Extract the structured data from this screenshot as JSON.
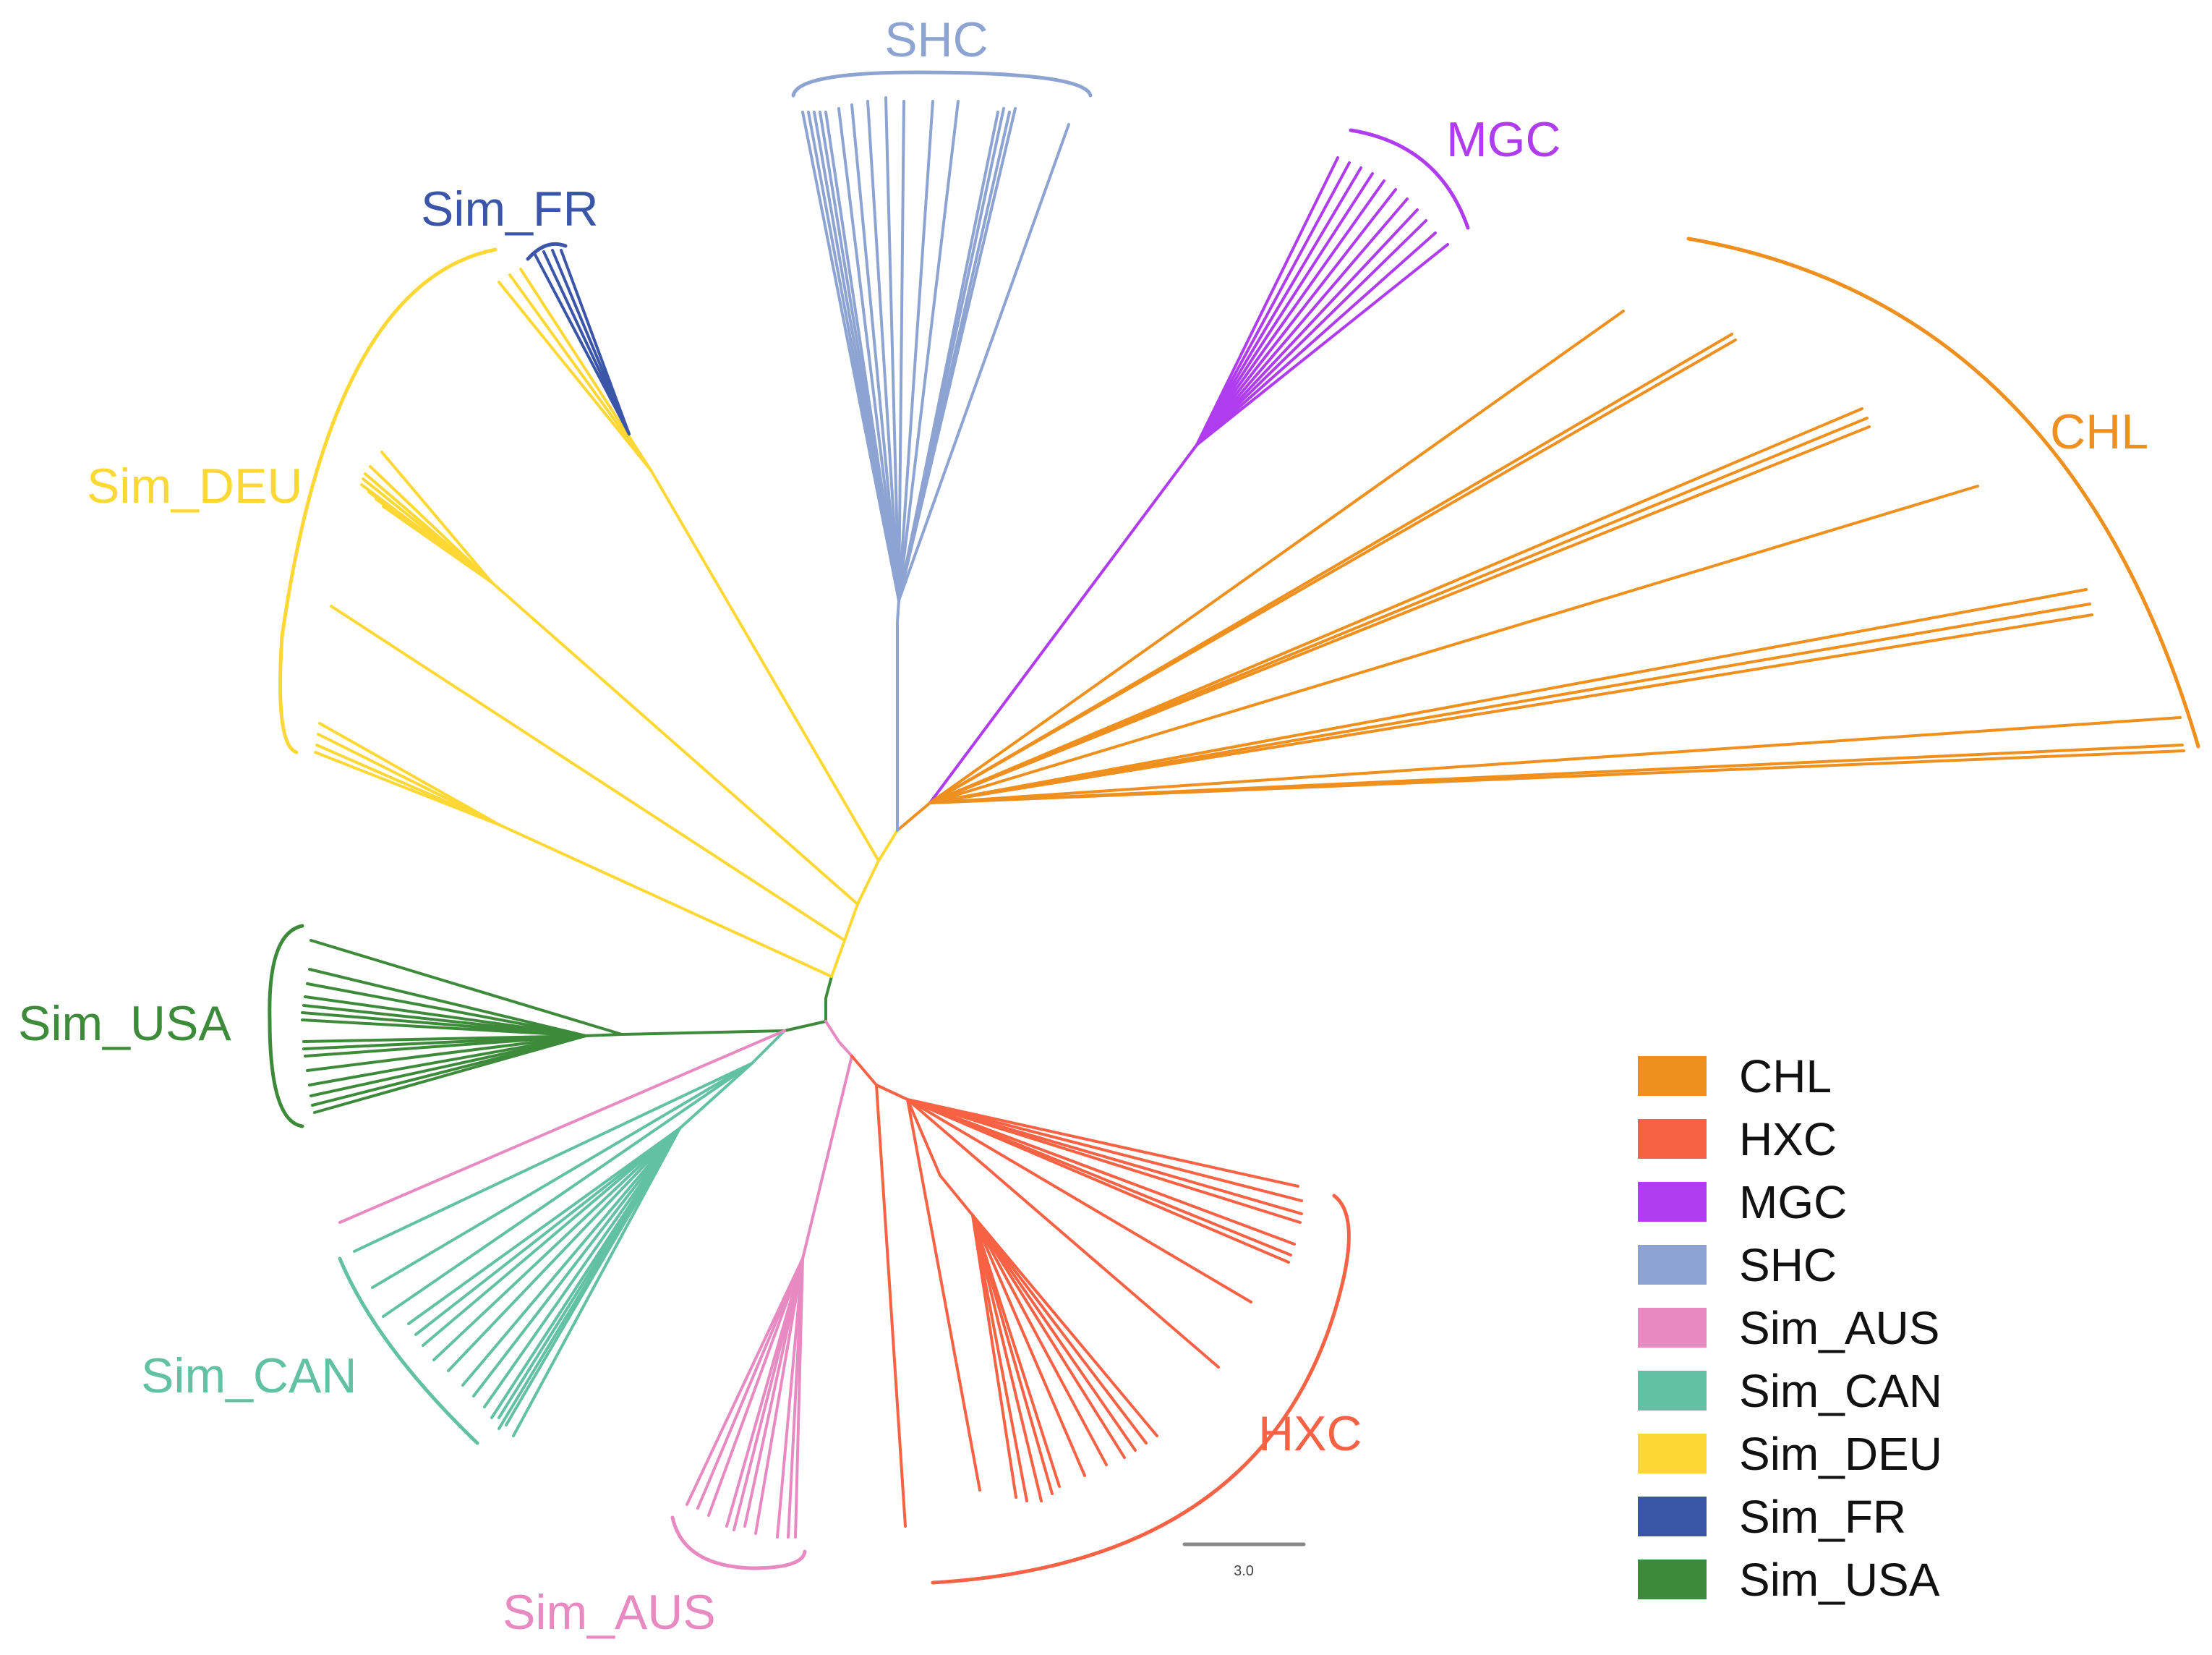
{
  "figure": {
    "type": "unrooted phylogenetic tree",
    "scale_bar_label": "3.0"
  },
  "colors": {
    "CHL": "#ef8f1e",
    "HXC": "#f86244",
    "MGC": "#b03cf0",
    "SHC": "#8da3d1",
    "Sim_AUS": "#e88ac2",
    "Sim_CAN": "#62c1a3",
    "Sim_DEU": "#fdd835",
    "Sim_FR": "#3b55a8",
    "Sim_USA": "#3d8b3a",
    "scale": "#888888"
  },
  "clade_labels": {
    "SHC": "SHC",
    "MGC": "MGC",
    "CHL": "CHL",
    "Sim_FR": "Sim_FR",
    "Sim_DEU": "Sim_DEU",
    "Sim_USA": "Sim_USA",
    "Sim_CAN": "Sim_CAN",
    "Sim_AUS": "Sim_AUS",
    "HXC": "HXC"
  },
  "legend": [
    {
      "key": "CHL",
      "label": "CHL"
    },
    {
      "key": "HXC",
      "label": "HXC"
    },
    {
      "key": "MGC",
      "label": "MGC"
    },
    {
      "key": "SHC",
      "label": "SHC"
    },
    {
      "key": "Sim_AUS",
      "label": "Sim_AUS"
    },
    {
      "key": "Sim_CAN",
      "label": "Sim_CAN"
    },
    {
      "key": "Sim_DEU",
      "label": "Sim_DEU"
    },
    {
      "key": "Sim_FR",
      "label": "Sim_FR"
    },
    {
      "key": "Sim_USA",
      "label": "Sim_USA"
    }
  ]
}
